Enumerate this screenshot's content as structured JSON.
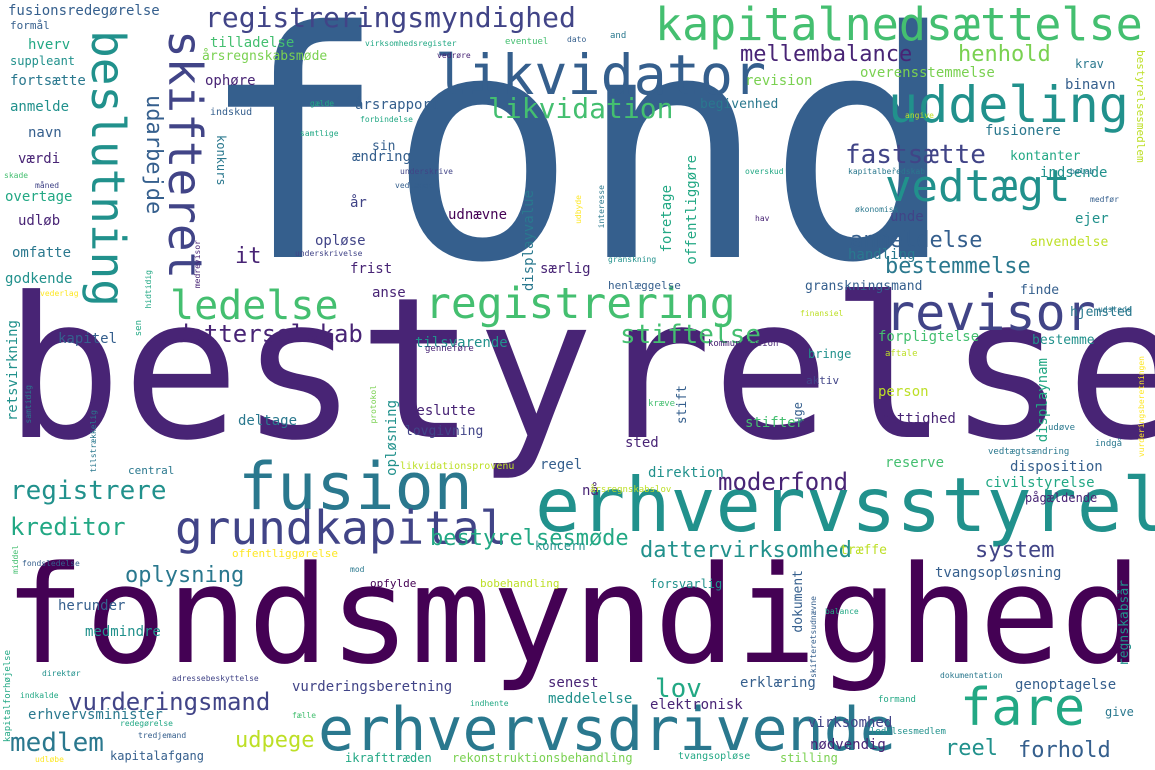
{
  "palette": {
    "p0": "#440154",
    "p1": "#482475",
    "p2": "#414487",
    "p3": "#355f8d",
    "p4": "#2a788e",
    "p5": "#21918c",
    "p6": "#22a884",
    "p7": "#44bf70",
    "p8": "#7ad151",
    "p9": "#bddf26",
    "p10": "#fde725"
  },
  "words": [
    {
      "t": "fond",
      "c": "p3"
    },
    {
      "t": "bestyrelse",
      "c": "p1"
    },
    {
      "t": "fondsmyndighed",
      "c": "p0"
    },
    {
      "t": "erhvervsstyrelse",
      "c": "p5"
    },
    {
      "t": "fusion",
      "c": "p4"
    },
    {
      "t": "erhvervsdrivende",
      "c": "p4"
    },
    {
      "t": "registrering",
      "c": "p7"
    },
    {
      "t": "likvidator",
      "c": "p3"
    },
    {
      "t": "kapitalnedsættelse",
      "c": "p7"
    },
    {
      "t": "uddeling",
      "c": "p5"
    },
    {
      "t": "vedtægt",
      "c": "p5"
    },
    {
      "t": "revisor",
      "c": "p2"
    },
    {
      "t": "ledelse",
      "c": "p7"
    },
    {
      "t": "grundkapital",
      "c": "p2"
    },
    {
      "t": "fare",
      "c": "p6"
    },
    {
      "t": "registreringsmyndighed",
      "c": "p2"
    },
    {
      "t": "beslutning",
      "c": "p5"
    },
    {
      "t": "skifteret",
      "c": "p2"
    },
    {
      "t": "likvidation",
      "c": "p7"
    },
    {
      "t": "mellembalance",
      "c": "p1"
    },
    {
      "t": "henhold",
      "c": "p8"
    },
    {
      "t": "fastsætte",
      "c": "p2"
    },
    {
      "t": "anmeldelse",
      "c": "p3"
    },
    {
      "t": "bestemmelse",
      "c": "p4"
    },
    {
      "t": "datterselskab",
      "c": "p1"
    },
    {
      "t": "stiftelse",
      "c": "p7"
    },
    {
      "t": "registrere",
      "c": "p5"
    },
    {
      "t": "kreditor",
      "c": "p6"
    },
    {
      "t": "moderfond",
      "c": "p1"
    },
    {
      "t": "bestyrelsesmøde",
      "c": "p6"
    },
    {
      "t": "dattervirksomhed",
      "c": "p5"
    },
    {
      "t": "system",
      "c": "p2"
    },
    {
      "t": "oplysning",
      "c": "p4"
    },
    {
      "t": "vurderingsmand",
      "c": "p2"
    },
    {
      "t": "lov",
      "c": "p6"
    },
    {
      "t": "medlem",
      "c": "p4"
    },
    {
      "t": "udpege",
      "c": "p9"
    },
    {
      "t": "reel",
      "c": "p5"
    },
    {
      "t": "forhold",
      "c": "p3"
    },
    {
      "t": "udarbejde",
      "c": "p3"
    },
    {
      "t": "årsrapport",
      "c": "p3"
    },
    {
      "t": "fusionsredegørelse",
      "c": "p3"
    },
    {
      "t": "formål",
      "c": "p3"
    },
    {
      "t": "hverv",
      "c": "p6"
    },
    {
      "t": "suppleant",
      "c": "p5"
    },
    {
      "t": "fortsætte",
      "c": "p4"
    },
    {
      "t": "anmelde",
      "c": "p5"
    },
    {
      "t": "navn",
      "c": "p3"
    },
    {
      "t": "værdi",
      "c": "p1"
    },
    {
      "t": "overtage",
      "c": "p6"
    },
    {
      "t": "udløb",
      "c": "p1"
    },
    {
      "t": "omfatte",
      "c": "p4"
    },
    {
      "t": "godkende",
      "c": "p5"
    },
    {
      "t": "tilladelse",
      "c": "p7"
    },
    {
      "t": "årsregnskabsmøde",
      "c": "p8"
    },
    {
      "t": "ophøre",
      "c": "p1"
    },
    {
      "t": "indskud",
      "c": "p3"
    },
    {
      "t": "revision",
      "c": "p8"
    },
    {
      "t": "overensstemmelse",
      "c": "p8"
    },
    {
      "t": "binavn",
      "c": "p3"
    },
    {
      "t": "krav",
      "c": "p4"
    },
    {
      "t": "begivenhed",
      "c": "p4"
    },
    {
      "t": "fusionere",
      "c": "p4"
    },
    {
      "t": "kontanter",
      "c": "p6"
    },
    {
      "t": "indsende",
      "c": "p5"
    },
    {
      "t": "unde",
      "c": "p2"
    },
    {
      "t": "ejer",
      "c": "p5"
    },
    {
      "t": "handling",
      "c": "p4"
    },
    {
      "t": "anvendelse",
      "c": "p9"
    },
    {
      "t": "finde",
      "c": "p3"
    },
    {
      "t": "hjemsted",
      "c": "p4"
    },
    {
      "t": "granskningsmand",
      "c": "p3"
    },
    {
      "t": "forpligtelse",
      "c": "p7"
    },
    {
      "t": "bestemme",
      "c": "p5"
    },
    {
      "t": "bringe",
      "c": "p5"
    },
    {
      "t": "aktiv",
      "c": "p2"
    },
    {
      "t": "person",
      "c": "p9"
    },
    {
      "t": "rettighed",
      "c": "p1"
    },
    {
      "t": "displaynam",
      "c": "p6"
    },
    {
      "t": "reserve",
      "c": "p7"
    },
    {
      "t": "disposition",
      "c": "p3"
    },
    {
      "t": "civilstyrelse",
      "c": "p6"
    },
    {
      "t": "pågældende",
      "c": "p1"
    },
    {
      "t": "tvangsopløsning",
      "c": "p3"
    },
    {
      "t": "regnskabsår",
      "c": "p5"
    },
    {
      "t": "genoptagelse",
      "c": "p3"
    },
    {
      "t": "give",
      "c": "p4"
    },
    {
      "t": "nødvendig",
      "c": "p1"
    },
    {
      "t": "virksomhed",
      "c": "p2"
    },
    {
      "t": "erklæring",
      "c": "p3"
    },
    {
      "t": "elektronisk",
      "c": "p1"
    },
    {
      "t": "senest",
      "c": "p1"
    },
    {
      "t": "meddelelse",
      "c": "p5"
    },
    {
      "t": "vurderingsberetning",
      "c": "p2"
    },
    {
      "t": "erhvervsminister",
      "c": "p4"
    },
    {
      "t": "kapitalafgang",
      "c": "p3"
    },
    {
      "t": "ikrafttræden",
      "c": "p6"
    },
    {
      "t": "rekonstruktionsbehandling",
      "c": "p8"
    },
    {
      "t": "tvangsopløse",
      "c": "p6"
    },
    {
      "t": "stilling",
      "c": "p8"
    },
    {
      "t": "herunder",
      "c": "p3"
    },
    {
      "t": "medmindre",
      "c": "p5"
    },
    {
      "t": "koncern",
      "c": "p5"
    },
    {
      "t": "træffe",
      "c": "p9"
    },
    {
      "t": "forsvarlig",
      "c": "p5"
    },
    {
      "t": "dokument",
      "c": "p3"
    },
    {
      "t": "opfylde",
      "c": "p0"
    },
    {
      "t": "bobehandling",
      "c": "p9"
    },
    {
      "t": "direktion",
      "c": "p5"
    },
    {
      "t": "regel",
      "c": "p3"
    },
    {
      "t": "sted",
      "c": "p1"
    },
    {
      "t": "nå",
      "c": "p1"
    },
    {
      "t": "beslutte",
      "c": "p1"
    },
    {
      "t": "deltage",
      "c": "p4"
    },
    {
      "t": "tilsvarende",
      "c": "p5"
    },
    {
      "t": "kapitel",
      "c": "p3"
    },
    {
      "t": "it",
      "c": "p1"
    },
    {
      "t": "opløse",
      "c": "p2"
    },
    {
      "t": "frist",
      "c": "p1"
    },
    {
      "t": "anse",
      "c": "p1"
    },
    {
      "t": "særlig",
      "c": "p1"
    },
    {
      "t": "henlæggelse",
      "c": "p3"
    },
    {
      "t": "udnævne",
      "c": "p0"
    },
    {
      "t": "år",
      "c": "p2"
    },
    {
      "t": "ændring",
      "c": "p3"
    },
    {
      "t": "konkurs",
      "c": "p4"
    },
    {
      "t": "sin",
      "c": "p3"
    },
    {
      "t": "foretage",
      "c": "p6"
    },
    {
      "t": "offentliggøre",
      "c": "p6"
    },
    {
      "t": "displayvalue",
      "c": "p4"
    },
    {
      "t": "retsvirkning",
      "c": "p5"
    },
    {
      "t": "opløsning",
      "c": "p5"
    },
    {
      "t": "stifter",
      "c": "p7"
    },
    {
      "t": "stift",
      "c": "p3"
    },
    {
      "t": "uge",
      "c": "p3"
    },
    {
      "t": "lovgivning",
      "c": "p2"
    },
    {
      "t": "central",
      "c": "p4"
    },
    {
      "t": "sen",
      "c": "p6"
    },
    {
      "t": "kommunikation",
      "c": "p1"
    },
    {
      "t": "offentliggørelse",
      "c": "p10"
    },
    {
      "t": "likvidationsprovenu",
      "c": "p9"
    },
    {
      "t": "årsregnskabslov",
      "c": "p9"
    },
    {
      "t": "vedtægtsændring",
      "c": "p4"
    },
    {
      "t": "udøve",
      "c": "p4"
    },
    {
      "t": "indgå",
      "c": "p4"
    },
    {
      "t": "kræve",
      "c": "p7"
    },
    {
      "t": "genneføre",
      "c": "p1"
    },
    {
      "t": "samtidig",
      "c": "p4"
    },
    {
      "t": "tilstrækkelig",
      "c": "p4"
    },
    {
      "t": "protokol",
      "c": "p8"
    },
    {
      "t": "aftale",
      "c": "p9"
    },
    {
      "t": "finansiel",
      "c": "p9"
    },
    {
      "t": "udstede",
      "c": "p4"
    },
    {
      "t": "bestyrelsesmedlem",
      "c": "p9"
    },
    {
      "t": "kapitalbeředskab",
      "c": "p4"
    },
    {
      "t": "belab",
      "c": "p4"
    },
    {
      "t": "medfør",
      "c": "p3"
    },
    {
      "t": "økonomisk",
      "c": "p4"
    },
    {
      "t": "hav",
      "c": "p1"
    },
    {
      "t": "overskud",
      "c": "p6"
    },
    {
      "t": "udbyde",
      "c": "p10"
    },
    {
      "t": "interesse",
      "c": "p4"
    },
    {
      "t": "vedlægge",
      "c": "p3"
    },
    {
      "t": "underskrive",
      "c": "p2"
    },
    {
      "t": "underskrivelse",
      "c": "p2"
    },
    {
      "t": "granskning",
      "c": "p5"
    },
    {
      "t": "medrevisor",
      "c": "p1"
    },
    {
      "t": "hidtidig",
      "c": "p6"
    },
    {
      "t": "vederlag",
      "c": "p10"
    },
    {
      "t": "skade",
      "c": "p7"
    },
    {
      "t": "måned",
      "c": "p2"
    },
    {
      "t": "gælde",
      "c": "p6"
    },
    {
      "t": "forbindelse",
      "c": "p6"
    },
    {
      "t": "samtlige",
      "c": "p6"
    },
    {
      "t": "angive",
      "c": "p9"
    },
    {
      "t": "virksomhedsregister",
      "c": "p6"
    },
    {
      "t": "vedrøre",
      "c": "p1"
    },
    {
      "t": "eventuel",
      "c": "p7"
    },
    {
      "t": "dato",
      "c": "p3"
    },
    {
      "t": "and",
      "c": "p4"
    },
    {
      "t": "vurderingsberetningen",
      "c": "p10"
    },
    {
      "t": "kapitalforhøjelse",
      "c": "p6"
    },
    {
      "t": "indkalde",
      "c": "p6"
    },
    {
      "t": "fondsledelse",
      "c": "p3"
    },
    {
      "t": "middel",
      "c": "p7"
    },
    {
      "t": "direktør",
      "c": "p5"
    },
    {
      "t": "adressebeskyttelse",
      "c": "p2"
    },
    {
      "t": "indhente",
      "c": "p6"
    },
    {
      "t": "fælle",
      "c": "p7"
    },
    {
      "t": "redegørelse",
      "c": "p6"
    },
    {
      "t": "tredjemand",
      "c": "p3"
    },
    {
      "t": "udløbe",
      "c": "p10"
    },
    {
      "t": "ledelsesmedlem",
      "c": "p5"
    },
    {
      "t": "dokumentation",
      "c": "p4"
    },
    {
      "t": "balance",
      "c": "p6"
    },
    {
      "t": "formand",
      "c": "p6"
    },
    {
      "t": "skifteretsudnævne",
      "c": "p3"
    },
    {
      "t": "mod",
      "c": "p4"
    }
  ]
}
